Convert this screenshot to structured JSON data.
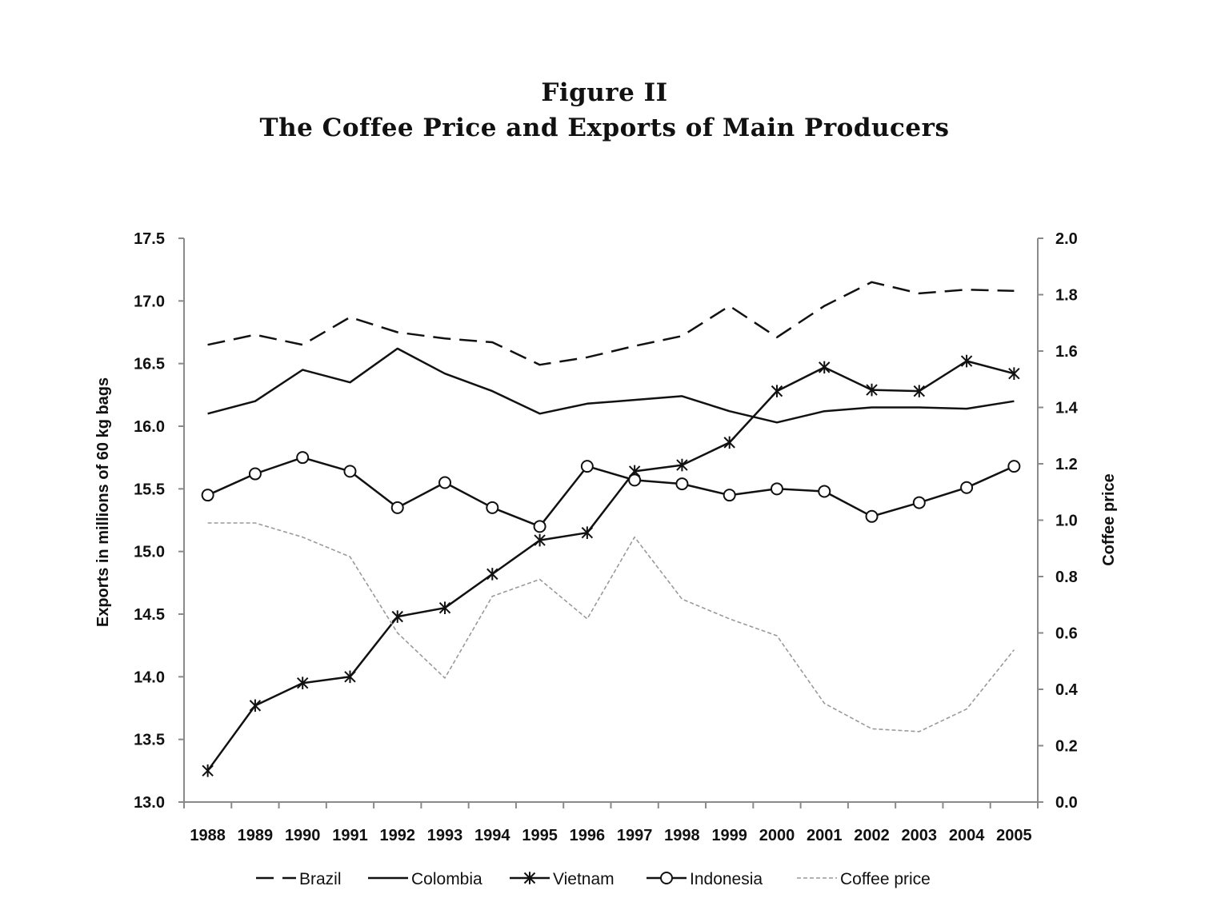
{
  "figure": {
    "label": "Figure II",
    "title": "The Coffee Price and Exports of Main Producers"
  },
  "chart_data": {
    "type": "line",
    "title": "The Coffee Price and Exports of Main Producers",
    "categories": [
      "1988",
      "1989",
      "1990",
      "1991",
      "1992",
      "1993",
      "1994",
      "1995",
      "1996",
      "1997",
      "1998",
      "1999",
      "2000",
      "2001",
      "2002",
      "2003",
      "2004",
      "2005"
    ],
    "ylabel": "Exports in millions of 60 kg bags",
    "ylabel_right": "Coffee price",
    "ylim": [
      13.0,
      17.5
    ],
    "ylim_right": [
      0.0,
      2.0
    ],
    "yticks": [
      "13.0",
      "13.5",
      "14.0",
      "14.5",
      "15.0",
      "15.5",
      "16.0",
      "16.5",
      "17.0",
      "17.5"
    ],
    "yticks_right": [
      "0.0",
      "0.2",
      "0.4",
      "0.6",
      "0.8",
      "1.0",
      "1.2",
      "1.4",
      "1.6",
      "1.8",
      "2.0"
    ],
    "legend_position": "bottom",
    "series": [
      {
        "name": "Brazil",
        "axis": "left",
        "style": "dashed",
        "color": "#111111",
        "values": [
          16.65,
          16.73,
          16.65,
          16.87,
          16.75,
          16.7,
          16.67,
          16.49,
          16.55,
          16.64,
          16.72,
          16.96,
          16.71,
          16.96,
          17.15,
          17.06,
          17.09,
          17.08
        ]
      },
      {
        "name": "Colombia",
        "axis": "left",
        "style": "solid",
        "color": "#111111",
        "values": [
          16.1,
          16.2,
          16.45,
          16.35,
          16.62,
          16.42,
          16.28,
          16.1,
          16.18,
          16.21,
          16.24,
          16.12,
          16.03,
          16.12,
          16.15,
          16.15,
          16.14,
          16.2
        ]
      },
      {
        "name": "Vietnam",
        "axis": "left",
        "style": "solid-star",
        "color": "#111111",
        "values": [
          13.25,
          13.77,
          13.95,
          14.0,
          14.48,
          14.55,
          14.82,
          15.09,
          15.15,
          15.64,
          15.69,
          15.87,
          16.28,
          16.47,
          16.29,
          16.28,
          16.52,
          16.42
        ]
      },
      {
        "name": "Indonesia",
        "axis": "left",
        "style": "solid-circle",
        "color": "#111111",
        "values": [
          15.45,
          15.62,
          15.75,
          15.64,
          15.35,
          15.55,
          15.35,
          15.2,
          15.68,
          15.57,
          15.54,
          15.45,
          15.5,
          15.48,
          15.28,
          15.39,
          15.51,
          15.68
        ]
      },
      {
        "name": "Coffee price",
        "axis": "right",
        "style": "dotted",
        "color": "#9a9a9a",
        "values": [
          0.99,
          0.99,
          0.94,
          0.87,
          0.6,
          0.44,
          0.73,
          0.79,
          0.65,
          0.94,
          0.72,
          0.65,
          0.59,
          0.35,
          0.26,
          0.25,
          0.33,
          0.54
        ]
      }
    ]
  }
}
